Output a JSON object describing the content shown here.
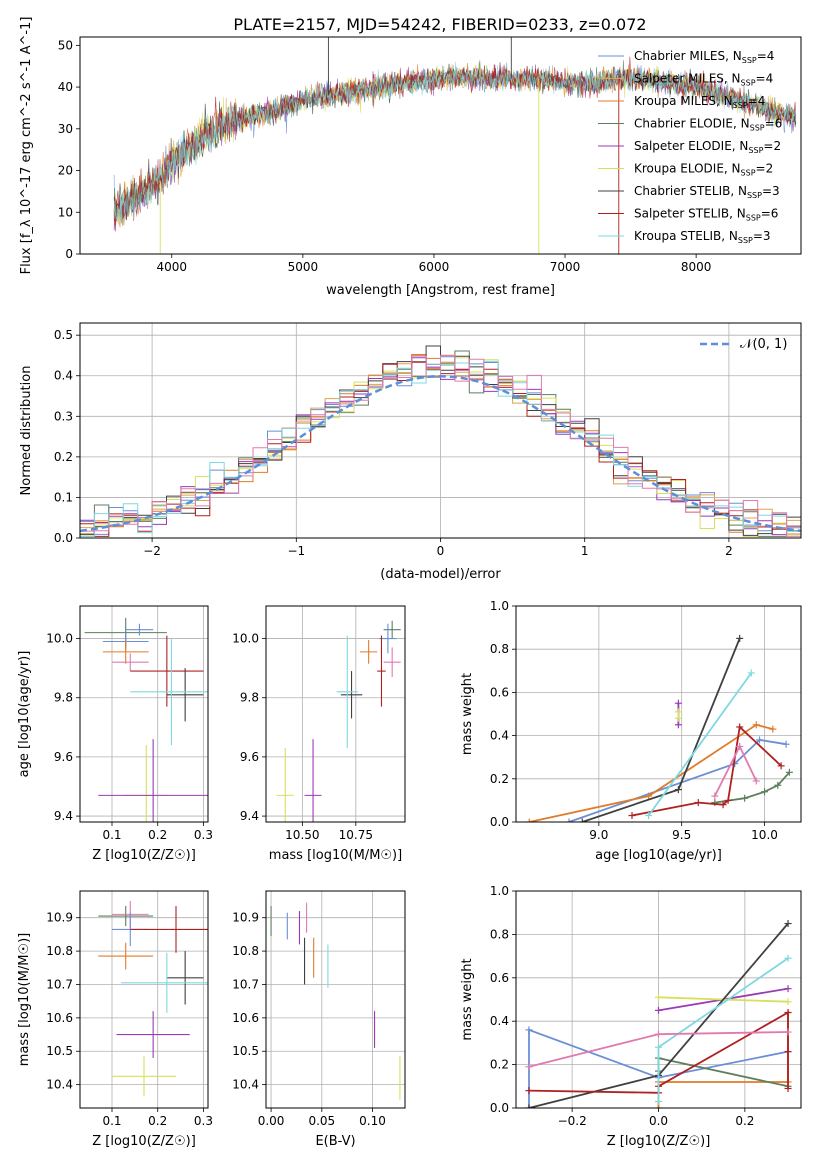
{
  "figure_title": "PLATE=2157, MJD=54242, FIBERID=0233, z=0.072",
  "colors": {
    "Chabrier MILES": "#6a8fd6",
    "Salpeter MILES": "#e0a24a",
    "Kroupa MILES": "#e07b2a",
    "Chabrier ELODIE": "#5c7f5c",
    "Salpeter ELODIE": "#9a3bb5",
    "Kroupa ELODIE": "#d8e05a",
    "Chabrier STELIB": "#404040",
    "Salpeter STELIB": "#b02020",
    "Kroupa STELIB": "#7fd8e0",
    "pink": "#e07ab0"
  },
  "chart_data": [
    {
      "id": "spectrum",
      "type": "line",
      "xlabel": "wavelength [Angstrom, rest frame]",
      "ylabel": "Flux [f_λ 10^-17 erg cm^-2 s^-1 A^-1]",
      "xlim": [
        3300,
        8800
      ],
      "ylim": [
        0,
        52
      ],
      "xticks": [
        "4000",
        "5000",
        "6000",
        "7000",
        "8000"
      ],
      "yticks": [
        "0",
        "10",
        "20",
        "30",
        "40",
        "50"
      ],
      "legend_position": "top-right",
      "legend": [
        {
          "label": "Chabrier MILES, N_SSP=4",
          "color_key": "Chabrier MILES"
        },
        {
          "label": "Salpeter MILES, N_SSP=4",
          "color_key": "Salpeter MILES"
        },
        {
          "label": "Kroupa MILES, N_SSP=4",
          "color_key": "Kroupa MILES"
        },
        {
          "label": "Chabrier ELODIE, N_SSP=6",
          "color_key": "Chabrier ELODIE"
        },
        {
          "label": "Salpeter ELODIE, N_SSP=2",
          "color_key": "Salpeter ELODIE"
        },
        {
          "label": "Kroupa ELODIE, N_SSP=2",
          "color_key": "Kroupa ELODIE"
        },
        {
          "label": "Chabrier STELIB, N_SSP=3",
          "color_key": "Chabrier STELIB"
        },
        {
          "label": "Salpeter STELIB, N_SSP=6",
          "color_key": "Salpeter STELIB"
        },
        {
          "label": "Kroupa STELIB, N_SSP=3",
          "color_key": "Kroupa STELIB"
        }
      ],
      "continuum": [
        [
          3550,
          10
        ],
        [
          3700,
          13
        ],
        [
          3900,
          17
        ],
        [
          4000,
          22
        ],
        [
          4200,
          27
        ],
        [
          4400,
          31
        ],
        [
          4600,
          33
        ],
        [
          4800,
          34.5
        ],
        [
          5000,
          37
        ],
        [
          5200,
          38
        ],
        [
          5400,
          39
        ],
        [
          5600,
          40
        ],
        [
          5800,
          41
        ],
        [
          6000,
          42
        ],
        [
          6200,
          42.5
        ],
        [
          6400,
          42
        ],
        [
          6600,
          42
        ],
        [
          6800,
          42
        ],
        [
          7000,
          41
        ],
        [
          7200,
          41
        ],
        [
          7400,
          42
        ],
        [
          7600,
          42
        ],
        [
          7800,
          41
        ],
        [
          8000,
          40
        ],
        [
          8200,
          38
        ],
        [
          8400,
          36
        ],
        [
          8600,
          34
        ],
        [
          8800,
          32
        ]
      ]
    },
    {
      "id": "residuals",
      "type": "bar",
      "xlabel": "(data-model)/error",
      "ylabel": "Normed distribution",
      "xlim": [
        -2.5,
        2.5
      ],
      "ylim": [
        0,
        0.53
      ],
      "xticks": [
        "−2",
        "−1",
        "0",
        "1",
        "2"
      ],
      "yticks": [
        "0.0",
        "0.1",
        "0.2",
        "0.3",
        "0.4",
        "0.5"
      ],
      "legend_position": "top-right",
      "legend_label": "𝒩(0, 1)",
      "grid": true
    },
    {
      "id": "age_vs_Z",
      "type": "scatter",
      "xlabel": "Z [log10(Z/Z☉)]",
      "ylabel": "age [log10(age/yr)]",
      "xlim": [
        0.03,
        0.31
      ],
      "ylim": [
        9.38,
        10.11
      ],
      "xticks": [
        "0.1",
        "0.2",
        "0.3"
      ],
      "yticks": [
        "9.4",
        "9.6",
        "9.8",
        "10.0"
      ],
      "grid": true,
      "points": [
        {
          "x": 0.13,
          "y": 10.02,
          "xerr": 0.09,
          "yerr": 0.05,
          "color_key": "Chabrier ELODIE"
        },
        {
          "x": 0.16,
          "y": 10.03,
          "xerr": 0.03,
          "yerr": 0.02,
          "color_key": "Chabrier MILES"
        },
        {
          "x": 0.13,
          "y": 9.99,
          "xerr": 0.05,
          "yerr": 0.03,
          "color_key": "Chabrier MILES"
        },
        {
          "x": 0.13,
          "y": 9.955,
          "xerr": 0.05,
          "yerr": 0.04,
          "color_key": "Kroupa MILES"
        },
        {
          "x": 0.14,
          "y": 9.92,
          "xerr": 0.04,
          "yerr": 0.03,
          "color_key": "pink"
        },
        {
          "x": 0.22,
          "y": 9.89,
          "xerr": 0.08,
          "yerr": 0.12,
          "color_key": "Salpeter STELIB"
        },
        {
          "x": 0.26,
          "y": 9.81,
          "xerr": 0.04,
          "yerr": 0.09,
          "color_key": "Chabrier STELIB"
        },
        {
          "x": 0.23,
          "y": 9.82,
          "xerr": 0.09,
          "yerr": 0.18,
          "color_key": "Kroupa STELIB"
        },
        {
          "x": 0.175,
          "y": 9.47,
          "xerr": 0.05,
          "yerr": 0.17,
          "color_key": "Kroupa ELODIE"
        },
        {
          "x": 0.19,
          "y": 9.47,
          "xerr": 0.12,
          "yerr": 0.19,
          "color_key": "Salpeter ELODIE"
        }
      ]
    },
    {
      "id": "age_vs_mass",
      "type": "scatter",
      "xlabel": "mass [log10(M/M☉)]",
      "ylabel": "",
      "xlim": [
        10.33,
        10.98
      ],
      "ylim": [
        9.38,
        10.11
      ],
      "xticks": [
        "10.50",
        "10.75"
      ],
      "yticks": [
        "9.4",
        "9.6",
        "9.8",
        "10.0"
      ],
      "grid": true,
      "points": [
        {
          "x": 10.92,
          "y": 10.03,
          "xerr": 0.04,
          "yerr": 0.03,
          "color_key": "Chabrier ELODIE"
        },
        {
          "x": 10.9,
          "y": 10.0,
          "xerr": 0.04,
          "yerr": 0.05,
          "color_key": "Chabrier MILES"
        },
        {
          "x": 10.81,
          "y": 9.955,
          "xerr": 0.04,
          "yerr": 0.04,
          "color_key": "Kroupa MILES"
        },
        {
          "x": 10.92,
          "y": 9.92,
          "xerr": 0.04,
          "yerr": 0.05,
          "color_key": "pink"
        },
        {
          "x": 10.87,
          "y": 9.89,
          "xerr": 0.02,
          "yerr": 0.12,
          "color_key": "Salpeter STELIB"
        },
        {
          "x": 10.73,
          "y": 9.81,
          "xerr": 0.05,
          "yerr": 0.08,
          "color_key": "Chabrier STELIB"
        },
        {
          "x": 10.71,
          "y": 9.82,
          "xerr": 0.05,
          "yerr": 0.19,
          "color_key": "Kroupa STELIB"
        },
        {
          "x": 10.42,
          "y": 9.47,
          "xerr": 0.04,
          "yerr": 0.16,
          "color_key": "Kroupa ELODIE"
        },
        {
          "x": 10.55,
          "y": 9.47,
          "xerr": 0.04,
          "yerr": 0.19,
          "color_key": "Salpeter ELODIE"
        }
      ]
    },
    {
      "id": "weight_vs_age",
      "type": "line",
      "xlabel": "age [log10(age/yr)]",
      "ylabel": "mass weight",
      "xlim": [
        8.5,
        10.22
      ],
      "ylim": [
        0,
        1.0
      ],
      "xticks": [
        "9.0",
        "9.5",
        "10.0"
      ],
      "yticks": [
        "0.0",
        "0.2",
        "0.4",
        "0.6",
        "0.8",
        "1.0"
      ],
      "grid": true,
      "series": [
        {
          "color_key": "Chabrier MILES",
          "x": [
            8.82,
            9.82,
            9.97,
            10.13
          ],
          "y": [
            0.0,
            0.27,
            0.38,
            0.36
          ]
        },
        {
          "color_key": "Kroupa MILES",
          "x": [
            8.58,
            9.3,
            9.95,
            10.05
          ],
          "y": [
            0.0,
            0.12,
            0.45,
            0.43
          ]
        },
        {
          "color_key": "Chabrier ELODIE",
          "x": [
            9.7,
            9.88,
            10.0,
            10.08,
            10.15
          ],
          "y": [
            0.09,
            0.11,
            0.14,
            0.17,
            0.23
          ]
        },
        {
          "color_key": "Salpeter ELODIE",
          "x": [
            9.48,
            9.48
          ],
          "y": [
            0.45,
            0.55
          ]
        },
        {
          "color_key": "Kroupa ELODIE",
          "x": [
            9.48,
            9.48
          ],
          "y": [
            0.48,
            0.51
          ]
        },
        {
          "color_key": "Chabrier STELIB",
          "x": [
            8.9,
            9.48,
            9.85
          ],
          "y": [
            0.0,
            0.15,
            0.85
          ]
        },
        {
          "color_key": "Salpeter STELIB",
          "x": [
            9.2,
            9.6,
            9.75,
            9.78,
            9.85,
            10.1
          ],
          "y": [
            0.03,
            0.09,
            0.08,
            0.1,
            0.44,
            0.26
          ]
        },
        {
          "color_key": "Kroupa STELIB",
          "x": [
            9.3,
            9.92
          ],
          "y": [
            0.03,
            0.69
          ]
        },
        {
          "color_key": "pink",
          "x": [
            9.7,
            9.85,
            9.95
          ],
          "y": [
            0.12,
            0.35,
            0.19
          ]
        }
      ]
    },
    {
      "id": "mass_vs_Z",
      "type": "scatter",
      "xlabel": "Z [log10(Z/Z☉)]",
      "ylabel": "mass [log10(M/M☉)]",
      "xlim": [
        0.03,
        0.31
      ],
      "ylim": [
        10.33,
        10.98
      ],
      "xticks": [
        "0.1",
        "0.2",
        "0.3"
      ],
      "yticks": [
        "10.4",
        "10.5",
        "10.6",
        "10.7",
        "10.8",
        "10.9"
      ],
      "grid": true,
      "points": [
        {
          "x": 0.13,
          "y": 10.905,
          "xerr": 0.06,
          "yerr": 0.03,
          "color_key": "Chabrier ELODIE"
        },
        {
          "x": 0.14,
          "y": 10.91,
          "xerr": 0.04,
          "yerr": 0.04,
          "color_key": "pink"
        },
        {
          "x": 0.14,
          "y": 10.865,
          "xerr": 0.04,
          "yerr": 0.05,
          "color_key": "Chabrier MILES"
        },
        {
          "x": 0.13,
          "y": 10.785,
          "xerr": 0.06,
          "yerr": 0.04,
          "color_key": "Kroupa MILES"
        },
        {
          "x": 0.24,
          "y": 10.865,
          "xerr": 0.1,
          "yerr": 0.07,
          "color_key": "Salpeter STELIB"
        },
        {
          "x": 0.26,
          "y": 10.72,
          "xerr": 0.04,
          "yerr": 0.08,
          "color_key": "Chabrier STELIB"
        },
        {
          "x": 0.22,
          "y": 10.705,
          "xerr": 0.1,
          "yerr": 0.09,
          "color_key": "Kroupa STELIB"
        },
        {
          "x": 0.17,
          "y": 10.425,
          "xerr": 0.07,
          "yerr": 0.06,
          "color_key": "Kroupa ELODIE"
        },
        {
          "x": 0.19,
          "y": 10.55,
          "xerr": 0.08,
          "yerr": 0.07,
          "color_key": "Salpeter ELODIE"
        }
      ]
    },
    {
      "id": "mass_vs_ebv",
      "type": "scatter",
      "xlabel": "E(B-V)",
      "ylabel": "",
      "xlim": [
        -0.005,
        0.132
      ],
      "ylim": [
        10.33,
        10.98
      ],
      "xticks": [
        "0.00",
        "0.05",
        "0.10"
      ],
      "yticks": [
        "10.4",
        "10.5",
        "10.6",
        "10.7",
        "10.8",
        "10.9"
      ],
      "grid": true,
      "points": [
        {
          "x": 0.0,
          "y": 10.89,
          "xerr": 0,
          "yerr": 0.045,
          "color_key": "Chabrier ELODIE"
        },
        {
          "x": 0.016,
          "y": 10.875,
          "xerr": 0,
          "yerr": 0.04,
          "color_key": "Chabrier MILES"
        },
        {
          "x": 0.028,
          "y": 10.87,
          "xerr": 0,
          "yerr": 0.05,
          "color_key": "Salpeter ELODIE"
        },
        {
          "x": 0.035,
          "y": 10.9,
          "xerr": 0,
          "yerr": 0.045,
          "color_key": "pink"
        },
        {
          "x": 0.033,
          "y": 10.77,
          "xerr": 0,
          "yerr": 0.07,
          "color_key": "Chabrier STELIB"
        },
        {
          "x": 0.042,
          "y": 10.78,
          "xerr": 0,
          "yerr": 0.06,
          "color_key": "Kroupa MILES"
        },
        {
          "x": 0.056,
          "y": 10.755,
          "xerr": 0,
          "yerr": 0.065,
          "color_key": "Kroupa STELIB"
        },
        {
          "x": 0.102,
          "y": 10.565,
          "xerr": 0,
          "yerr": 0.055,
          "color_key": "Salpeter ELODIE"
        },
        {
          "x": 0.127,
          "y": 10.42,
          "xerr": 0,
          "yerr": 0.065,
          "color_key": "Kroupa ELODIE"
        }
      ]
    },
    {
      "id": "weight_vs_Z",
      "type": "line",
      "xlabel": "Z [log10(Z/Z☉)]",
      "ylabel": "mass weight",
      "xlim": [
        -0.33,
        0.33
      ],
      "ylim": [
        0,
        1.0
      ],
      "xticks": [
        "−0.2",
        "0.0",
        "0.2"
      ],
      "yticks": [
        "0.0",
        "0.2",
        "0.4",
        "0.6",
        "0.8",
        "1.0"
      ],
      "grid": true,
      "series": [
        {
          "color_key": "Chabrier MILES",
          "x": [
            -0.3,
            -0.3,
            0.0,
            0.3
          ],
          "y": [
            0.0,
            0.36,
            0.14,
            0.26
          ]
        },
        {
          "color_key": "Kroupa MILES",
          "x": [
            0.0,
            0.0,
            0.3,
            0.3
          ],
          "y": [
            0.0,
            0.12,
            0.12,
            0.44
          ]
        },
        {
          "color_key": "Chabrier ELODIE",
          "x": [
            0.0,
            0.0,
            0.3
          ],
          "y": [
            0.17,
            0.23,
            0.1
          ]
        },
        {
          "color_key": "Salpeter ELODIE",
          "x": [
            0.0,
            0.3
          ],
          "y": [
            0.45,
            0.55
          ]
        },
        {
          "color_key": "Kroupa ELODIE",
          "x": [
            0.0,
            0.3
          ],
          "y": [
            0.51,
            0.49
          ]
        },
        {
          "color_key": "Chabrier STELIB",
          "x": [
            -0.3,
            0.0,
            0.3
          ],
          "y": [
            0.0,
            0.15,
            0.85
          ]
        },
        {
          "color_key": "Salpeter STELIB",
          "x": [
            -0.3,
            0.0,
            0.0,
            0.3,
            0.3,
            0.3
          ],
          "y": [
            0.08,
            0.07,
            0.1,
            0.44,
            0.26,
            0.09
          ]
        },
        {
          "color_key": "Kroupa STELIB",
          "x": [
            0.0,
            0.0,
            0.3
          ],
          "y": [
            0.03,
            0.28,
            0.69
          ]
        },
        {
          "color_key": "pink",
          "x": [
            -0.3,
            0.0,
            0.3
          ],
          "y": [
            0.19,
            0.34,
            0.35
          ]
        }
      ]
    }
  ]
}
